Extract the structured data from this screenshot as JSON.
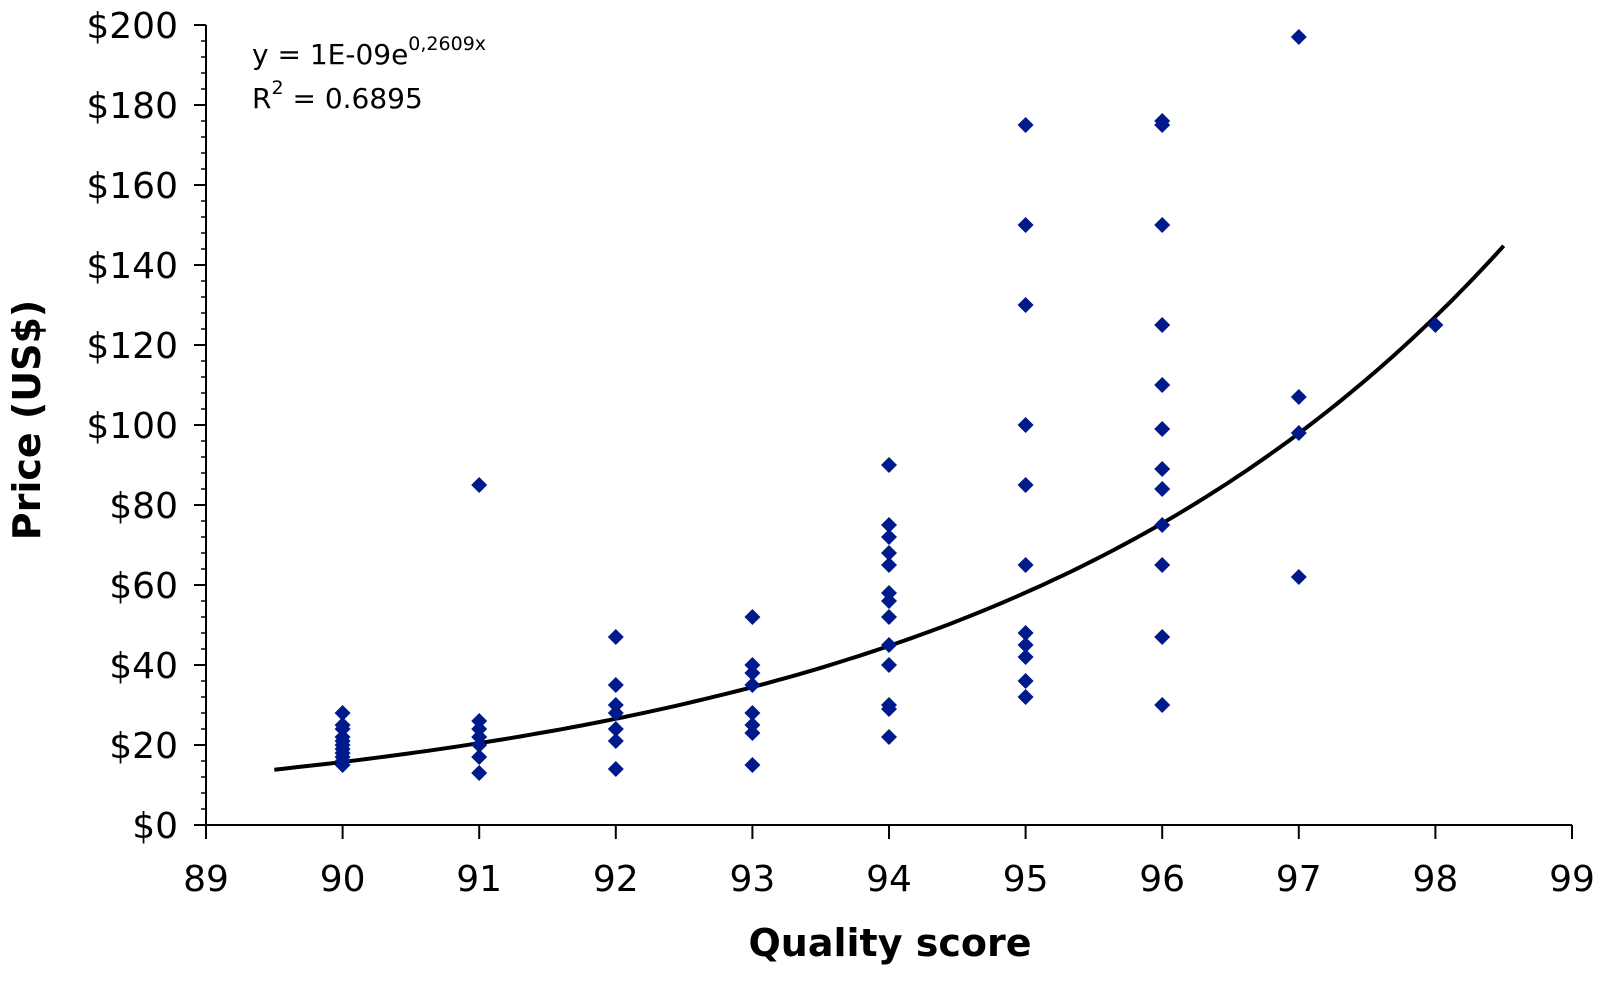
{
  "chart_data": {
    "type": "scatter",
    "title": "",
    "xlabel": "Quality score",
    "ylabel": "Price (US$)",
    "xlim": [
      89,
      99
    ],
    "ylim": [
      0,
      200
    ],
    "x_ticks": [
      "89",
      "90",
      "91",
      "92",
      "93",
      "94",
      "95",
      "96",
      "97",
      "98",
      "99"
    ],
    "y_ticks": [
      "$0",
      "$20",
      "$40",
      "$60",
      "$80",
      "$100",
      "$120",
      "$140",
      "$160",
      "$180",
      "$200"
    ],
    "grid": false,
    "legend": "none",
    "marker_color": "#001a8c",
    "trendline_color": "#000000",
    "series": [
      {
        "marker": "diamond",
        "points": [
          [
            90,
            28
          ],
          [
            90,
            25
          ],
          [
            90,
            24
          ],
          [
            90,
            22
          ],
          [
            90,
            21
          ],
          [
            90,
            20
          ],
          [
            90,
            19
          ],
          [
            90,
            18
          ],
          [
            90,
            17
          ],
          [
            90,
            16
          ],
          [
            90,
            15
          ],
          [
            91,
            85
          ],
          [
            91,
            26
          ],
          [
            91,
            24
          ],
          [
            91,
            22
          ],
          [
            91,
            20
          ],
          [
            91,
            17
          ],
          [
            91,
            13
          ],
          [
            92,
            47
          ],
          [
            92,
            35
          ],
          [
            92,
            30
          ],
          [
            92,
            28
          ],
          [
            92,
            24
          ],
          [
            92,
            21
          ],
          [
            92,
            14
          ],
          [
            93,
            52
          ],
          [
            93,
            40
          ],
          [
            93,
            38
          ],
          [
            93,
            35
          ],
          [
            93,
            28
          ],
          [
            93,
            25
          ],
          [
            93,
            23
          ],
          [
            93,
            15
          ],
          [
            94,
            90
          ],
          [
            94,
            75
          ],
          [
            94,
            72
          ],
          [
            94,
            68
          ],
          [
            94,
            65
          ],
          [
            94,
            58
          ],
          [
            94,
            56
          ],
          [
            94,
            52
          ],
          [
            94,
            45
          ],
          [
            94,
            40
          ],
          [
            94,
            30
          ],
          [
            94,
            29
          ],
          [
            94,
            22
          ],
          [
            95,
            175
          ],
          [
            95,
            150
          ],
          [
            95,
            130
          ],
          [
            95,
            100
          ],
          [
            95,
            85
          ],
          [
            95,
            65
          ],
          [
            95,
            48
          ],
          [
            95,
            45
          ],
          [
            95,
            42
          ],
          [
            95,
            36
          ],
          [
            95,
            32
          ],
          [
            96,
            176
          ],
          [
            96,
            175
          ],
          [
            96,
            150
          ],
          [
            96,
            125
          ],
          [
            96,
            110
          ],
          [
            96,
            99
          ],
          [
            96,
            89
          ],
          [
            96,
            84
          ],
          [
            96,
            75
          ],
          [
            96,
            65
          ],
          [
            96,
            47
          ],
          [
            96,
            30
          ],
          [
            97,
            197
          ],
          [
            97,
            107
          ],
          [
            97,
            98
          ],
          [
            97,
            62
          ],
          [
            98,
            125
          ]
        ]
      }
    ],
    "trendline": {
      "type": "exponential",
      "a": 1e-09,
      "b": 0.2609,
      "x_range": [
        89.5,
        98.5
      ],
      "equation_text": "y = 1E-09e",
      "equation_exponent": "0,2609x",
      "r2_label": "R",
      "r2_sup": "2",
      "r2_text": " = 0.6895"
    }
  }
}
